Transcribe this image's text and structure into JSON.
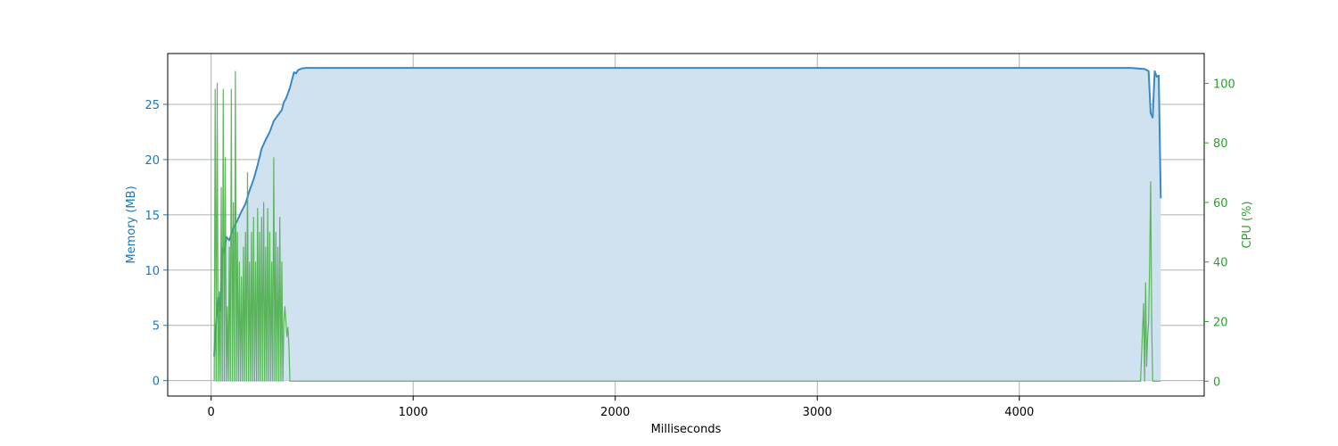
{
  "chart_data": {
    "type": "area",
    "title": "",
    "xlabel": "Milliseconds",
    "ylabel_left": "Memory (MB)",
    "ylabel_right": "CPU (%)",
    "xlim": [
      -215,
      4915
    ],
    "ylim_left": [
      -1.4,
      29.6
    ],
    "ylim_right": [
      -5,
      110
    ],
    "x_ticks": [
      0,
      1000,
      2000,
      3000,
      4000
    ],
    "y_ticks_left": [
      0,
      5,
      10,
      15,
      20,
      25
    ],
    "y_ticks_right": [
      0,
      20,
      40,
      60,
      80,
      100
    ],
    "grid": true,
    "colors": {
      "memory_line": "#3b88c4",
      "memory_fill": "#d0e2f0",
      "cpu_line": "#4daf4a",
      "left_axis": "#1f77b4",
      "right_axis": "#2ca02c",
      "grid": "#b0b0b0"
    },
    "series": [
      {
        "name": "Memory (MB)",
        "axis": "left",
        "style": "line+fill",
        "x": [
          15,
          25,
          35,
          45,
          55,
          65,
          75,
          90,
          110,
          130,
          150,
          170,
          190,
          210,
          230,
          250,
          270,
          290,
          310,
          330,
          350,
          360,
          370,
          380,
          390,
          400,
          410,
          420,
          430,
          450,
          470,
          500,
          1000,
          2000,
          3000,
          4000,
          4550,
          4620,
          4640,
          4650,
          4660,
          4670,
          4680,
          4690,
          4700
        ],
        "y": [
          2.2,
          5.5,
          7.5,
          6.3,
          12.0,
          11.5,
          13.0,
          12.7,
          13.8,
          14.5,
          15.3,
          16.0,
          17.2,
          18.2,
          19.5,
          21.0,
          21.8,
          22.5,
          23.5,
          24.0,
          24.5,
          25.2,
          25.5,
          26.0,
          26.5,
          27.2,
          27.9,
          27.8,
          28.1,
          28.25,
          28.3,
          28.3,
          28.3,
          28.3,
          28.3,
          28.3,
          28.3,
          28.2,
          28.0,
          24.2,
          23.8,
          28.0,
          27.5,
          27.6,
          16.5
        ]
      },
      {
        "name": "CPU (%)",
        "axis": "right",
        "style": "line",
        "x": [
          15,
          20,
          25,
          30,
          35,
          40,
          45,
          50,
          55,
          60,
          65,
          70,
          75,
          80,
          85,
          90,
          95,
          100,
          105,
          110,
          115,
          120,
          125,
          130,
          135,
          140,
          145,
          150,
          155,
          160,
          165,
          170,
          175,
          180,
          185,
          190,
          195,
          200,
          205,
          210,
          215,
          220,
          225,
          230,
          235,
          240,
          245,
          250,
          255,
          260,
          265,
          270,
          275,
          280,
          285,
          290,
          295,
          300,
          305,
          310,
          315,
          320,
          325,
          330,
          335,
          340,
          345,
          350,
          355,
          360,
          365,
          370,
          375,
          380,
          385,
          390,
          395,
          400,
          405,
          410,
          415,
          420,
          425,
          430,
          435,
          440,
          445,
          450,
          455,
          460,
          465,
          470,
          480,
          500,
          1000,
          2000,
          3000,
          4000,
          4500,
          4600,
          4615,
          4620,
          4625,
          4630,
          4635,
          4640,
          4645,
          4650,
          4655,
          4660,
          4665,
          4670,
          4675,
          4680,
          4690,
          4700
        ],
        "y": [
          0,
          98,
          0,
          100,
          0,
          30,
          0,
          65,
          0,
          98,
          0,
          75,
          0,
          25,
          0,
          45,
          0,
          98,
          0,
          60,
          0,
          104,
          0,
          50,
          0,
          40,
          0,
          35,
          0,
          45,
          0,
          50,
          0,
          70,
          0,
          40,
          0,
          50,
          0,
          55,
          0,
          40,
          0,
          58,
          0,
          50,
          0,
          55,
          0,
          60,
          0,
          45,
          0,
          58,
          0,
          50,
          0,
          40,
          0,
          75,
          0,
          50,
          0,
          45,
          0,
          55,
          0,
          40,
          0,
          20,
          25,
          20,
          15,
          18,
          12,
          0,
          0,
          0,
          0,
          0,
          0,
          0,
          0,
          0,
          0,
          0,
          0,
          0,
          0,
          0,
          0,
          0,
          0,
          0,
          0,
          0,
          0,
          0,
          0,
          0,
          26,
          0,
          33,
          5,
          15,
          20,
          40,
          67,
          20,
          0,
          0,
          0,
          0,
          0,
          0,
          0
        ]
      }
    ]
  }
}
